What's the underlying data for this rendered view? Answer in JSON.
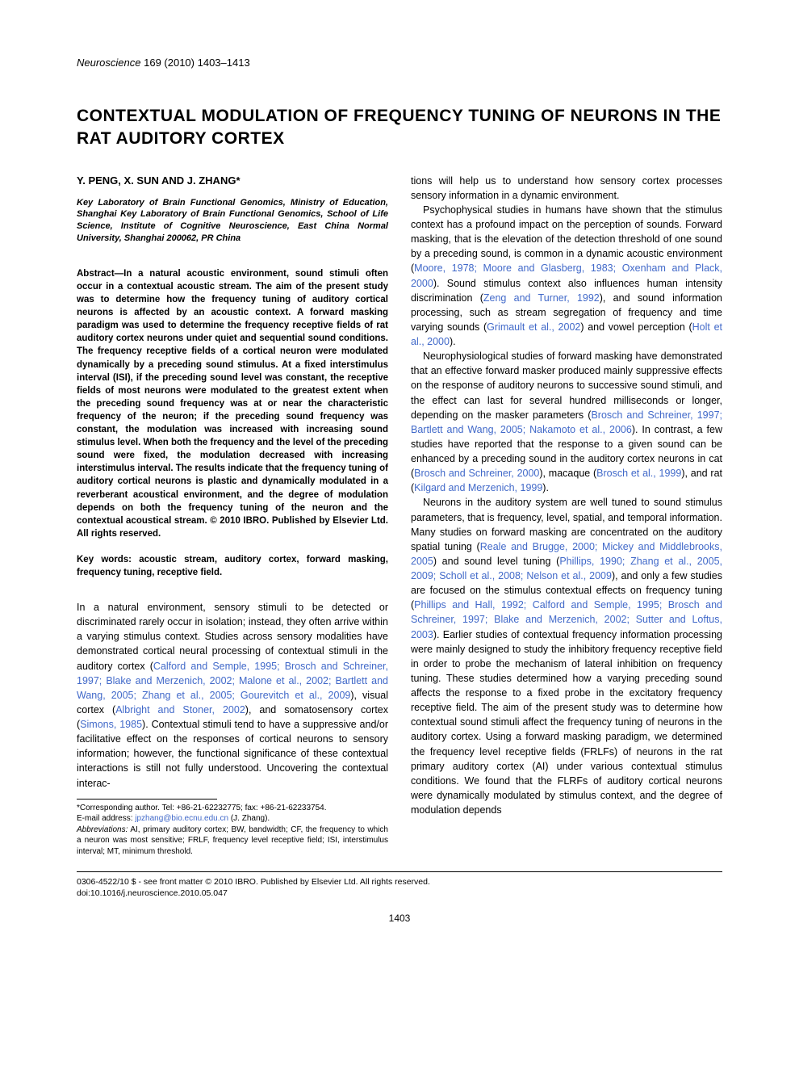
{
  "header": {
    "journal_name": "Neuroscience",
    "citation": " 169 (2010) 1403–1413"
  },
  "title": "CONTEXTUAL MODULATION OF FREQUENCY TUNING OF NEURONS IN THE RAT AUDITORY CORTEX",
  "authors": "Y. PENG, X. SUN AND J. ZHANG*",
  "affiliation": "Key Laboratory of Brain Functional Genomics, Ministry of Education, Shanghai Key Laboratory of Brain Functional Genomics, School of Life Science, Institute of Cognitive Neuroscience, East China Normal University, Shanghai 200062, PR China",
  "abstract_label": "Abstract—",
  "abstract_body": "In a natural acoustic environment, sound stimuli often occur in a contextual acoustic stream. The aim of the present study was to determine how the frequency tuning of auditory cortical neurons is affected by an acoustic context. A forward masking paradigm was used to determine the frequency receptive fields of rat auditory cortex neurons under quiet and sequential sound conditions. The frequency receptive fields of a cortical neuron were modulated dynamically by a preceding sound stimulus. At a fixed interstimulus interval (ISI), if the preceding sound level was constant, the receptive fields of most neurons were modulated to the greatest extent when the preceding sound frequency was at or near the characteristic frequency of the neuron; if the preceding sound frequency was constant, the modulation was increased with increasing sound stimulus level. When both the frequency and the level of the preceding sound were fixed, the modulation decreased with increasing interstimulus interval. The results indicate that the frequency tuning of auditory cortical neurons is plastic and dynamically modulated in a reverberant acoustical environment, and the degree of modulation depends on both the frequency tuning of the neuron and the contextual acoustical stream. © 2010 IBRO. Published by Elsevier Ltd. All rights reserved.",
  "keywords_label": "Key words: ",
  "keywords_body": "acoustic stream, auditory cortex, forward masking, frequency tuning, receptive field.",
  "left_intro_1_pre": "In a natural environment, sensory stimuli to be detected or discriminated rarely occur in isolation; instead, they often arrive within a varying stimulus context. Studies across sensory modalities have demonstrated cortical neural processing of contextual stimuli in the auditory cortex (",
  "cite_L1": "Calford and Semple, 1995; Brosch and Schreiner, 1997; Blake and Merzenich, 2002; Malone et al., 2002; Bartlett and Wang, 2005; Zhang et al., 2005; Gourevitch et al., 2009",
  "left_intro_1_mid1": "), visual cortex (",
  "cite_L2": "Albright and Stoner, 2002",
  "left_intro_1_mid2": "), and somatosensory cortex (",
  "cite_L3": "Simons, 1985",
  "left_intro_1_post": "). Contextual stimuli tend to have a suppressive and/or facilitative effect on the responses of cortical neurons to sensory information; however, the functional significance of these contextual interactions is still not fully understood. Uncovering the contextual interac-",
  "footnote_corr": "*Corresponding author. Tel: +86-21-62232775; fax: +86-21-62233754.",
  "footnote_email_label": "E-mail address: ",
  "footnote_email": "jpzhang@bio.ecnu.edu.cn",
  "footnote_email_post": " (J. Zhang).",
  "footnote_abbr_label": "Abbreviations:",
  "footnote_abbr": " AI, primary auditory cortex; BW, bandwidth; CF, the frequency to which a neuron was most sensitive; FRLF, frequency level receptive field; ISI, interstimulus interval; MT, minimum threshold.",
  "right_p1": "tions will help us to understand how sensory cortex processes sensory information in a dynamic environment.",
  "right_p2_pre": "Psychophysical studies in humans have shown that the stimulus context has a profound impact on the perception of sounds. Forward masking, that is the elevation of the detection threshold of one sound by a preceding sound, is common in a dynamic acoustic environment (",
  "cite_R1": "Moore, 1978; Moore and Glasberg, 1983; Oxenham and Plack, 2000",
  "right_p2_mid1": "). Sound stimulus context also influences human intensity discrimination (",
  "cite_R2": "Zeng and Turner, 1992",
  "right_p2_mid2": "), and sound information processing, such as stream segregation of frequency and time varying sounds (",
  "cite_R3": "Grimault et al., 2002",
  "right_p2_mid3": ") and vowel perception (",
  "cite_R4": "Holt et al., 2000",
  "right_p2_post": ").",
  "right_p3_pre": "Neurophysiological studies of forward masking have demonstrated that an effective forward masker produced mainly suppressive effects on the response of auditory neurons to successive sound stimuli, and the effect can last for several hundred milliseconds or longer, depending on the masker parameters (",
  "cite_R5": "Brosch and Schreiner, 1997; Bartlett and Wang, 2005; Nakamoto et al., 2006",
  "right_p3_mid1": "). In contrast, a few studies have reported that the response to a given sound can be enhanced by a preceding sound in the auditory cortex neurons in cat (",
  "cite_R6": "Brosch and Schreiner, 2000",
  "right_p3_mid2": "), macaque (",
  "cite_R7": "Brosch et al., 1999",
  "right_p3_mid3": "), and rat (",
  "cite_R8": "Kilgard and Merzenich, 1999",
  "right_p3_post": ").",
  "right_p4_pre": "Neurons in the auditory system are well tuned to sound stimulus parameters, that is frequency, level, spatial, and temporal information. Many studies on forward masking are concentrated on the auditory spatial tuning (",
  "cite_R9": "Reale and Brugge, 2000; Mickey and Middlebrooks, 2005",
  "right_p4_mid1": ") and sound level tuning (",
  "cite_R10": "Phillips, 1990; Zhang et al., 2005, 2009; Scholl et al., 2008; Nelson et al., 2009",
  "right_p4_mid2": "), and only a few studies are focused on the stimulus contextual effects on frequency tuning (",
  "cite_R11": "Phillips and Hall, 1992; Calford and Semple, 1995; Brosch and Schreiner, 1997; Blake and Merzenich, 2002; Sutter and Loftus, 2003",
  "right_p4_post": "). Earlier studies of contextual frequency information processing were mainly designed to study the inhibitory frequency receptive field in order to probe the mechanism of lateral inhibition on frequency tuning. These studies determined how a varying preceding sound affects the response to a fixed probe in the excitatory frequency receptive field. The aim of the present study was to determine how contextual sound stimuli affect the frequency tuning of neurons in the auditory cortex. Using a forward masking paradigm, we determined the frequency level receptive fields (FRLFs) of neurons in the rat primary auditory cortex (AI) under various contextual stimulus conditions. We found that the FLRFs of auditory cortical neurons were dynamically modulated by stimulus context, and the degree of modulation depends",
  "copyright": "0306-4522/10 $ - see front matter © 2010 IBRO. Published by Elsevier Ltd. All rights reserved.",
  "doi": "doi:10.1016/j.neuroscience.2010.05.047",
  "page_number": "1403",
  "colors": {
    "text": "#000000",
    "citation": "#4169c9",
    "background": "#ffffff"
  }
}
